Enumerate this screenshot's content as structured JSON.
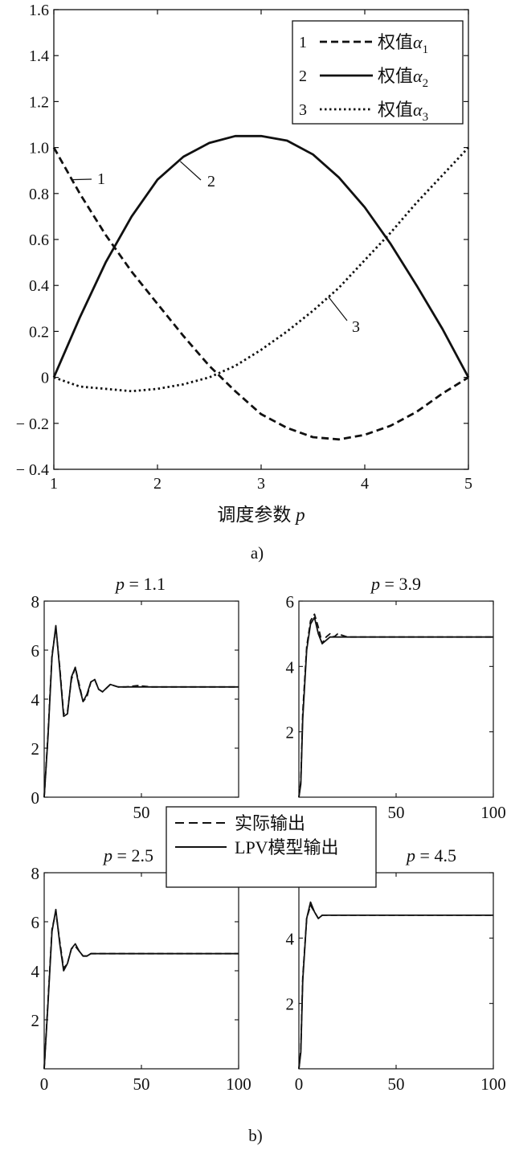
{
  "chart_data": [
    {
      "type": "line",
      "panel_label": "a)",
      "xlabel": "调度参数 p",
      "xlim": [
        1,
        5
      ],
      "ylim": [
        -0.4,
        1.6
      ],
      "xticks": [
        "1",
        "2",
        "3",
        "4",
        "5"
      ],
      "yticks": [
        "1.6",
        "1.4",
        "1.2",
        "1.0",
        "0.8",
        "0.6",
        "0.4",
        "0.2",
        "0",
        "-0.2",
        "-0.4"
      ],
      "grid": false,
      "legend_position": "top-right",
      "series": [
        {
          "name": "1 权值α1",
          "style": "dashed",
          "label": "1",
          "x": [
            1,
            1.25,
            1.5,
            1.75,
            2,
            2.25,
            2.5,
            2.75,
            3,
            3.25,
            3.5,
            3.75,
            4,
            4.25,
            4.5,
            4.75,
            5
          ],
          "y": [
            1.0,
            0.8,
            0.62,
            0.46,
            0.32,
            0.18,
            0.05,
            -0.06,
            -0.16,
            -0.22,
            -0.26,
            -0.27,
            -0.25,
            -0.21,
            -0.15,
            -0.07,
            0.0
          ]
        },
        {
          "name": "2 权值α2",
          "style": "solid",
          "label": "2",
          "x": [
            1,
            1.25,
            1.5,
            1.75,
            2,
            2.25,
            2.5,
            2.75,
            3,
            3.25,
            3.5,
            3.75,
            4,
            4.25,
            4.5,
            4.75,
            5
          ],
          "y": [
            0.0,
            0.26,
            0.5,
            0.7,
            0.86,
            0.96,
            1.02,
            1.05,
            1.05,
            1.03,
            0.97,
            0.87,
            0.74,
            0.58,
            0.4,
            0.21,
            0.0
          ]
        },
        {
          "name": "3 权值α3",
          "style": "dotted",
          "label": "3",
          "x": [
            1,
            1.25,
            1.5,
            1.75,
            2,
            2.25,
            2.5,
            2.75,
            3,
            3.25,
            3.5,
            3.75,
            4,
            4.25,
            4.5,
            4.75,
            5
          ],
          "y": [
            0.0,
            -0.04,
            -0.05,
            -0.06,
            -0.05,
            -0.03,
            0.0,
            0.05,
            0.12,
            0.2,
            0.29,
            0.39,
            0.51,
            0.63,
            0.76,
            0.88,
            1.0
          ]
        }
      ]
    },
    {
      "type": "line",
      "title": "p = 1.1",
      "xlim": [
        0,
        100
      ],
      "ylim": [
        0,
        8
      ],
      "xticks": [
        "50"
      ],
      "yticks": [
        "8",
        "6",
        "4",
        "2",
        "0"
      ],
      "series": [
        {
          "name": "实际输出",
          "style": "dashed",
          "x": [
            0,
            2,
            4,
            6,
            8,
            10,
            12,
            14,
            16,
            18,
            20,
            22,
            24,
            26,
            28,
            30,
            34,
            38,
            42,
            48,
            55,
            100
          ],
          "y": [
            0,
            2.6,
            5.8,
            6.9,
            5.3,
            3.4,
            3.5,
            4.8,
            5.3,
            4.6,
            3.9,
            4.1,
            4.7,
            4.8,
            4.4,
            4.3,
            4.6,
            4.5,
            4.5,
            4.55,
            4.5,
            4.5
          ]
        },
        {
          "name": "LPV模型输出",
          "style": "solid",
          "x": [
            0,
            2,
            4,
            6,
            8,
            10,
            12,
            14,
            16,
            18,
            20,
            22,
            24,
            26,
            28,
            30,
            34,
            38,
            42,
            48,
            55,
            100
          ],
          "y": [
            0,
            2.5,
            5.7,
            7.0,
            5.2,
            3.3,
            3.4,
            4.9,
            5.3,
            4.5,
            3.9,
            4.2,
            4.7,
            4.8,
            4.4,
            4.3,
            4.6,
            4.5,
            4.5,
            4.5,
            4.5,
            4.5
          ]
        }
      ]
    },
    {
      "type": "line",
      "title": "p = 3.9",
      "xlim": [
        0,
        100
      ],
      "ylim": [
        0,
        6
      ],
      "xticks": [
        "50",
        "100"
      ],
      "yticks": [
        "6",
        "4",
        "2"
      ],
      "series": [
        {
          "name": "实际输出",
          "style": "dashed",
          "x": [
            0,
            1,
            2,
            4,
            6,
            8,
            10,
            12,
            14,
            16,
            18,
            20,
            25,
            100
          ],
          "y": [
            0,
            0.5,
            2.6,
            4.6,
            5.4,
            5.6,
            5.2,
            4.7,
            4.9,
            5.0,
            4.9,
            5.0,
            4.9,
            4.9
          ]
        },
        {
          "name": "LPV模型输出",
          "style": "solid",
          "x": [
            0,
            1,
            2,
            4,
            6,
            8,
            10,
            12,
            14,
            16,
            18,
            20,
            25,
            100
          ],
          "y": [
            0,
            0.4,
            2.4,
            4.5,
            5.3,
            5.5,
            5.0,
            4.7,
            4.8,
            4.9,
            4.9,
            4.9,
            4.9,
            4.9
          ]
        }
      ]
    },
    {
      "type": "line",
      "title": "p = 2.5",
      "xlim": [
        0,
        100
      ],
      "ylim": [
        0,
        8
      ],
      "xticks": [
        "0",
        "50",
        "100"
      ],
      "yticks": [
        "8",
        "6",
        "4",
        "2"
      ],
      "series": [
        {
          "name": "实际输出",
          "style": "dashed",
          "x": [
            0,
            2,
            4,
            6,
            8,
            10,
            12,
            14,
            16,
            18,
            20,
            22,
            24,
            26,
            28,
            30,
            40,
            100
          ],
          "y": [
            0,
            2.8,
            5.7,
            6.4,
            5.2,
            4.1,
            4.3,
            4.9,
            5.0,
            4.8,
            4.6,
            4.6,
            4.7,
            4.7,
            4.7,
            4.7,
            4.7,
            4.7
          ]
        },
        {
          "name": "LPV模型输出",
          "style": "solid",
          "x": [
            0,
            2,
            4,
            6,
            8,
            10,
            12,
            14,
            16,
            18,
            20,
            22,
            24,
            26,
            28,
            30,
            40,
            100
          ],
          "y": [
            0,
            2.7,
            5.6,
            6.5,
            5.1,
            4.0,
            4.3,
            4.9,
            5.1,
            4.8,
            4.6,
            4.6,
            4.7,
            4.7,
            4.7,
            4.7,
            4.7,
            4.7
          ]
        }
      ]
    },
    {
      "type": "line",
      "title": "p = 4.5",
      "xlim": [
        0,
        100
      ],
      "ylim": [
        0,
        6
      ],
      "xticks": [
        "0",
        "50",
        "100"
      ],
      "yticks": [
        "6",
        "4",
        "2"
      ],
      "series": [
        {
          "name": "实际输出",
          "style": "dashed",
          "x": [
            0,
            1,
            2,
            4,
            6,
            8,
            10,
            12,
            14,
            18,
            25,
            100
          ],
          "y": [
            0,
            0.6,
            2.8,
            4.6,
            5.0,
            4.8,
            4.6,
            4.7,
            4.7,
            4.7,
            4.7,
            4.7
          ]
        },
        {
          "name": "LPV模型输出",
          "style": "solid",
          "x": [
            0,
            1,
            2,
            4,
            6,
            8,
            10,
            12,
            14,
            18,
            25,
            100
          ],
          "y": [
            0,
            0.5,
            2.7,
            4.6,
            5.1,
            4.8,
            4.6,
            4.7,
            4.7,
            4.7,
            4.7,
            4.7
          ]
        }
      ]
    }
  ],
  "legend_b": {
    "items": [
      {
        "label": "实际输出",
        "style": "dashed"
      },
      {
        "label": "LPV模型输出",
        "style": "solid"
      }
    ]
  },
  "panel_b_label": "b)"
}
